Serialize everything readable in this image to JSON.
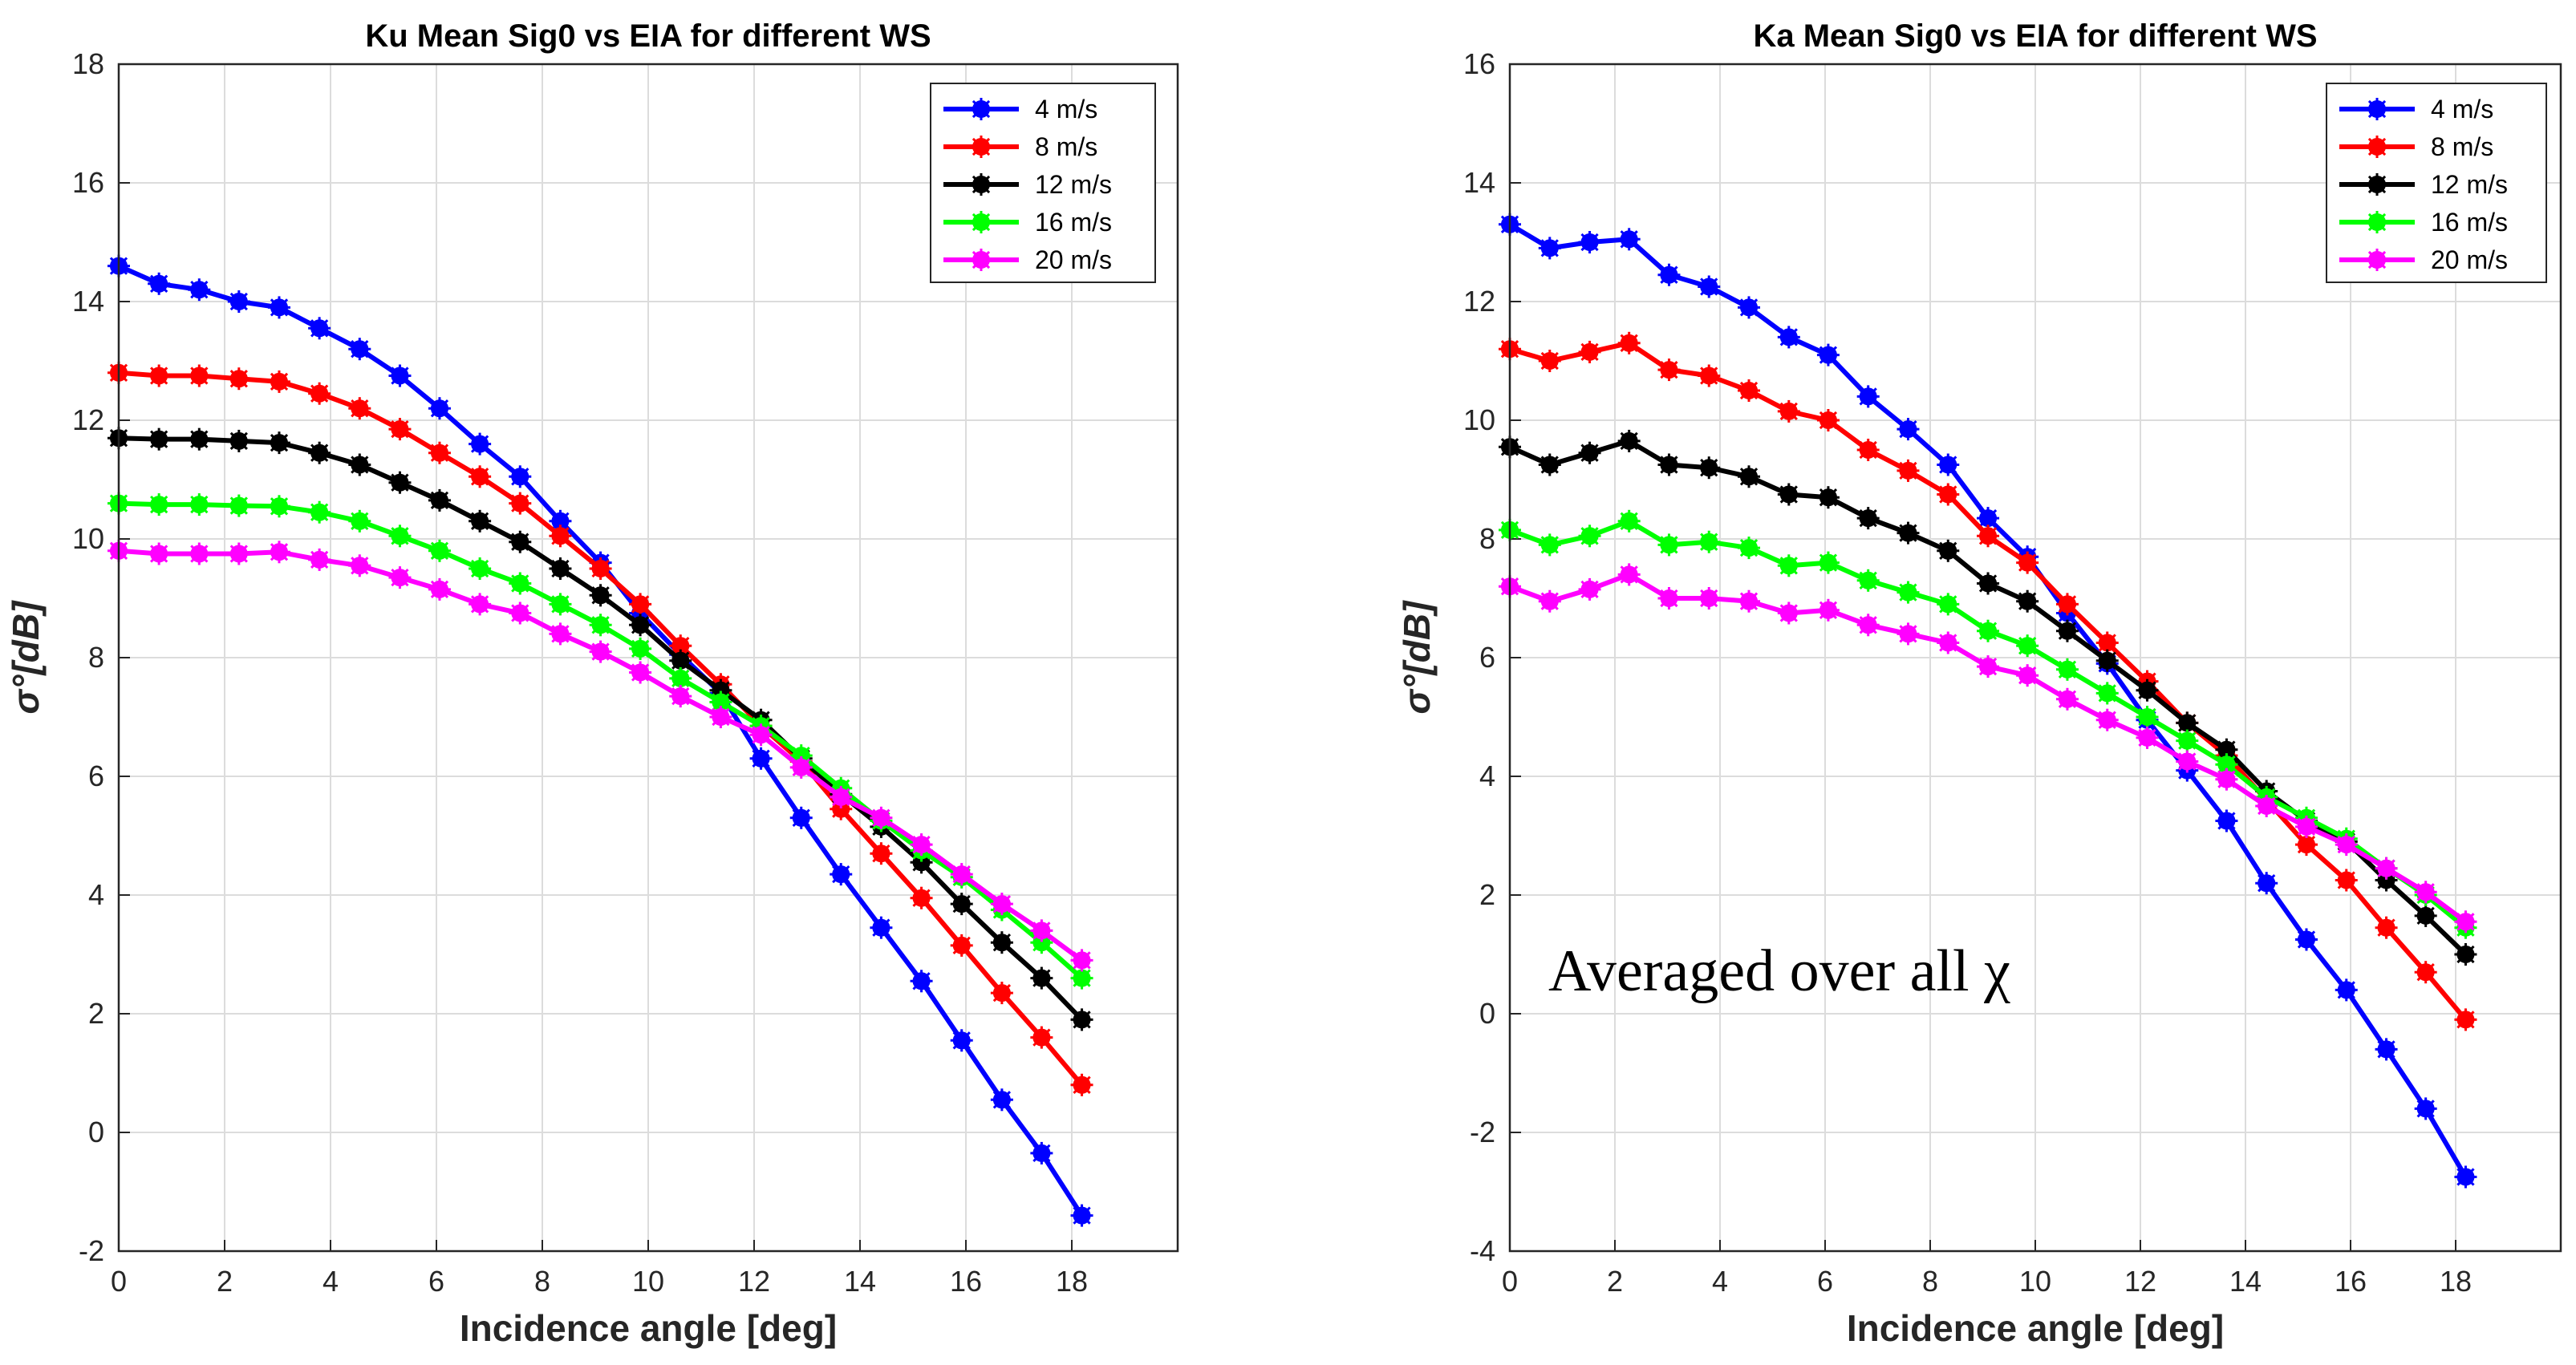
{
  "chart_data": [
    {
      "type": "line",
      "title": "Ku Mean Sig0 vs EIA for different WS",
      "xlabel": "Incidence angle [deg]",
      "ylabel": "σ°[dB]",
      "xlim": [
        0,
        20
      ],
      "ylim": [
        -2,
        18
      ],
      "xticks": [
        "0",
        "2",
        "4",
        "6",
        "8",
        "10",
        "12",
        "14",
        "16",
        "18"
      ],
      "yticks": [
        "-2",
        "0",
        "2",
        "4",
        "6",
        "8",
        "10",
        "12",
        "14",
        "16",
        "18"
      ],
      "grid": true,
      "legend_location": "top-right",
      "x": [
        0.0,
        0.76,
        1.52,
        2.27,
        3.03,
        3.79,
        4.55,
        5.31,
        6.06,
        6.82,
        7.58,
        8.34,
        9.1,
        9.85,
        10.61,
        11.37,
        12.13,
        12.89,
        13.64,
        14.4,
        15.16,
        15.92,
        16.68,
        17.43,
        18.19
      ],
      "series": [
        {
          "name": "4 m/s",
          "color": "#0000ff",
          "values": [
            14.6,
            14.3,
            14.2,
            14.0,
            13.9,
            13.55,
            13.2,
            12.75,
            12.2,
            11.6,
            11.05,
            10.3,
            9.6,
            8.75,
            8.05,
            7.4,
            6.3,
            5.3,
            4.35,
            3.45,
            2.55,
            1.55,
            0.55,
            -0.35,
            -1.4
          ]
        },
        {
          "name": "8 m/s",
          "color": "#ff0000",
          "values": [
            12.8,
            12.75,
            12.75,
            12.7,
            12.65,
            12.45,
            12.2,
            11.85,
            11.45,
            11.05,
            10.6,
            10.05,
            9.5,
            8.9,
            8.2,
            7.55,
            6.85,
            6.25,
            5.45,
            4.7,
            3.95,
            3.15,
            2.35,
            1.6,
            0.8
          ]
        },
        {
          "name": "12 m/s",
          "color": "#000000",
          "values": [
            11.7,
            11.68,
            11.68,
            11.65,
            11.62,
            11.45,
            11.25,
            10.95,
            10.65,
            10.3,
            9.95,
            9.5,
            9.05,
            8.55,
            7.95,
            7.45,
            6.95,
            6.3,
            5.7,
            5.15,
            4.55,
            3.85,
            3.2,
            2.6,
            1.9
          ]
        },
        {
          "name": "16 m/s",
          "color": "#00ff00",
          "values": [
            10.6,
            10.58,
            10.58,
            10.56,
            10.55,
            10.45,
            10.3,
            10.05,
            9.8,
            9.5,
            9.25,
            8.9,
            8.55,
            8.15,
            7.65,
            7.25,
            6.85,
            6.35,
            5.8,
            5.25,
            4.75,
            4.3,
            3.75,
            3.2,
            2.6
          ]
        },
        {
          "name": "20 m/s",
          "color": "#ff00ff",
          "values": [
            9.8,
            9.75,
            9.75,
            9.75,
            9.78,
            9.65,
            9.55,
            9.35,
            9.15,
            8.9,
            8.75,
            8.4,
            8.1,
            7.75,
            7.35,
            7.0,
            6.7,
            6.15,
            5.65,
            5.3,
            4.85,
            4.35,
            3.85,
            3.4,
            2.9
          ]
        }
      ]
    },
    {
      "type": "line",
      "title": "Ka Mean Sig0 vs EIA for different WS",
      "xlabel": "Incidence angle [deg]",
      "ylabel": "σ°[dB]",
      "xlim": [
        0,
        20
      ],
      "ylim": [
        -4,
        16
      ],
      "xticks": [
        "0",
        "2",
        "4",
        "6",
        "8",
        "10",
        "12",
        "14",
        "16",
        "18"
      ],
      "yticks": [
        "-4",
        "-2",
        "0",
        "2",
        "4",
        "6",
        "8",
        "10",
        "12",
        "14",
        "16"
      ],
      "grid": true,
      "legend_location": "top-right",
      "annotation": "Averaged over all χ",
      "x": [
        0.0,
        0.76,
        1.52,
        2.27,
        3.03,
        3.79,
        4.55,
        5.31,
        6.06,
        6.82,
        7.58,
        8.34,
        9.1,
        9.85,
        10.61,
        11.37,
        12.13,
        12.89,
        13.64,
        14.4,
        15.16,
        15.92,
        16.68,
        17.43,
        18.19
      ],
      "series": [
        {
          "name": "4 m/s",
          "color": "#0000ff",
          "values": [
            13.3,
            12.9,
            13.0,
            13.05,
            12.45,
            12.25,
            11.9,
            11.4,
            11.1,
            10.4,
            9.85,
            9.25,
            8.35,
            7.7,
            6.75,
            5.9,
            4.95,
            4.1,
            3.25,
            2.2,
            1.25,
            0.4,
            -0.6,
            -1.6,
            -2.75
          ]
        },
        {
          "name": "8 m/s",
          "color": "#ff0000",
          "values": [
            11.2,
            11.0,
            11.15,
            11.3,
            10.85,
            10.75,
            10.5,
            10.15,
            10.0,
            9.5,
            9.15,
            8.75,
            8.05,
            7.6,
            6.9,
            6.25,
            5.6,
            4.9,
            4.35,
            3.6,
            2.85,
            2.25,
            1.45,
            0.7,
            -0.1
          ]
        },
        {
          "name": "12 m/s",
          "color": "#000000",
          "values": [
            9.55,
            9.25,
            9.45,
            9.65,
            9.25,
            9.2,
            9.05,
            8.75,
            8.7,
            8.35,
            8.1,
            7.8,
            7.25,
            6.95,
            6.45,
            5.95,
            5.45,
            4.9,
            4.45,
            3.75,
            3.25,
            2.9,
            2.25,
            1.65,
            1.0
          ]
        },
        {
          "name": "16 m/s",
          "color": "#00ff00",
          "values": [
            8.15,
            7.9,
            8.05,
            8.3,
            7.9,
            7.95,
            7.85,
            7.55,
            7.6,
            7.3,
            7.1,
            6.9,
            6.45,
            6.2,
            5.8,
            5.4,
            5.0,
            4.6,
            4.2,
            3.65,
            3.3,
            2.95,
            2.45,
            2.0,
            1.45
          ]
        },
        {
          "name": "20 m/s",
          "color": "#ff00ff",
          "values": [
            7.2,
            6.95,
            7.15,
            7.4,
            7.0,
            7.0,
            6.95,
            6.75,
            6.8,
            6.55,
            6.4,
            6.25,
            5.85,
            5.7,
            5.3,
            4.95,
            4.65,
            4.25,
            3.95,
            3.5,
            3.15,
            2.85,
            2.45,
            2.05,
            1.55
          ]
        }
      ]
    }
  ]
}
